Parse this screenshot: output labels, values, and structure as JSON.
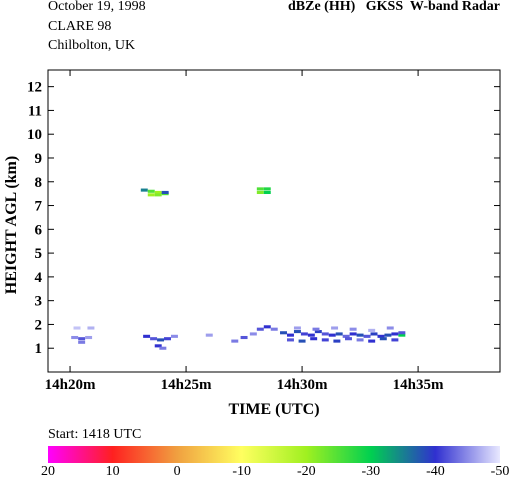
{
  "chart_data": {
    "type": "time-height",
    "header_left": [
      "October 19, 1998",
      "CLARE 98",
      "Chilbolton, UK"
    ],
    "title": "dBZe (HH)   GKSS  W-band Radar",
    "ylabel": "HEIGHT AGL (km)",
    "xlabel": "TIME (UTC)",
    "start_label": "Start: 1418 UTC",
    "xlim": [
      19.05,
      38.53
    ],
    "xticks": [
      {
        "value": 20,
        "label": "14h20m"
      },
      {
        "value": 25,
        "label": "14h25m"
      },
      {
        "value": 30,
        "label": "14h30m"
      },
      {
        "value": 35,
        "label": "14h35m"
      }
    ],
    "ylim": [
      0,
      12.7
    ],
    "yticks": [
      1,
      2,
      3,
      4,
      5,
      6,
      7,
      8,
      9,
      10,
      11,
      12
    ],
    "cells": {
      "time": [
        23.2,
        23.5,
        23.8,
        24.1,
        23.5,
        23.8,
        24.1,
        28.2,
        28.5,
        28.2,
        28.5,
        20.2,
        20.5,
        20.8,
        20.5,
        20.3,
        20.9,
        23.3,
        23.6,
        23.9,
        24.2,
        24.5,
        23.8,
        24.0,
        26.0,
        27.1,
        27.5,
        27.9,
        28.2,
        28.5,
        28.8,
        29.2,
        29.5,
        29.8,
        30.1,
        30.4,
        30.7,
        31.0,
        31.3,
        31.6,
        31.9,
        32.2,
        32.5,
        32.8,
        33.1,
        33.4,
        33.7,
        34.0,
        34.3,
        29.5,
        30.0,
        30.5,
        31.0,
        31.5,
        32.0,
        32.5,
        33.0,
        33.5,
        34.0,
        29.8,
        30.6,
        31.4,
        32.2,
        33.0,
        33.8,
        34.3
      ],
      "height": [
        7.65,
        7.6,
        7.55,
        7.5,
        7.45,
        7.45,
        7.55,
        7.7,
        7.7,
        7.55,
        7.55,
        1.45,
        1.4,
        1.45,
        1.25,
        1.85,
        1.85,
        1.5,
        1.4,
        1.35,
        1.4,
        1.5,
        1.1,
        1.0,
        1.55,
        1.3,
        1.45,
        1.6,
        1.8,
        1.9,
        1.8,
        1.65,
        1.55,
        1.7,
        1.6,
        1.55,
        1.7,
        1.6,
        1.55,
        1.6,
        1.5,
        1.6,
        1.55,
        1.5,
        1.6,
        1.5,
        1.55,
        1.6,
        1.55,
        1.35,
        1.3,
        1.4,
        1.35,
        1.3,
        1.4,
        1.35,
        1.3,
        1.4,
        1.35,
        1.85,
        1.8,
        1.85,
        1.8,
        1.75,
        1.85,
        1.65
      ],
      "dbze": [
        -35,
        -25,
        -20,
        -25,
        -20,
        -22,
        -38,
        -25,
        -28,
        -22,
        -30,
        -45,
        -42,
        -46,
        -44,
        -48,
        -47,
        -40,
        -42,
        -38,
        -41,
        -45,
        -40,
        -44,
        -46,
        -44,
        -42,
        -45,
        -42,
        -40,
        -44,
        -38,
        -40,
        -38,
        -41,
        -40,
        -39,
        -42,
        -40,
        -38,
        -43,
        -40,
        -38,
        -42,
        -39,
        -40,
        -38,
        -40,
        -30,
        -42,
        -38,
        -40,
        -41,
        -39,
        -42,
        -44,
        -40,
        -38,
        -41,
        -46,
        -44,
        -46,
        -45,
        -47,
        -45,
        -42
      ]
    },
    "colorscale": {
      "ticks": [
        20,
        10,
        0,
        -10,
        -20,
        -30,
        -40,
        -50
      ],
      "colors": [
        "#ff00ff",
        "#ff2020",
        "#f0a040",
        "#ffff60",
        "#a0f020",
        "#00d050",
        "#3030d0",
        "#e8e8ff"
      ]
    }
  }
}
